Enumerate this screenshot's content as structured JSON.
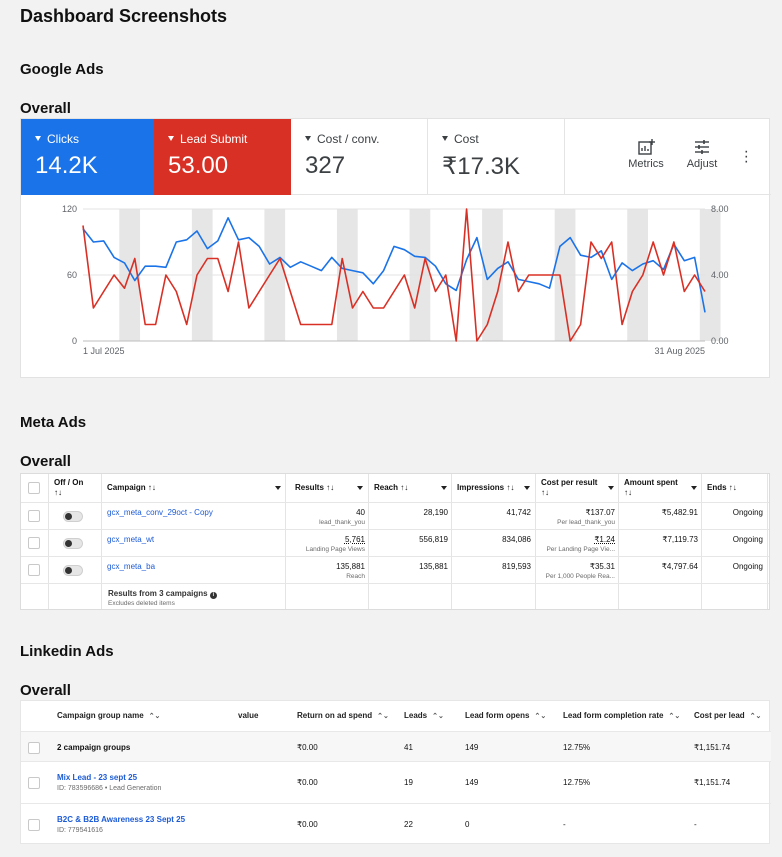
{
  "page": {
    "title": "Dashboard Screenshots"
  },
  "google": {
    "section": "Google Ads",
    "overall": "Overall",
    "tiles": [
      {
        "label": "Clicks",
        "value": "14.2K"
      },
      {
        "label": "Lead Submit",
        "value": "53.00"
      },
      {
        "label": "Cost / conv.",
        "value": "327"
      },
      {
        "label": "Cost",
        "value": "₹17.3K"
      }
    ],
    "tools": {
      "metrics": "Metrics",
      "adjust": "Adjust"
    },
    "colors": {
      "clicks": "#1a73e8",
      "leads": "#d93025"
    },
    "chart_data": {
      "type": "line",
      "x_start_label": "1 Jul 2025",
      "x_end_label": "31 Aug 2025",
      "left_axis": {
        "ticks": [
          "0",
          "60",
          "120"
        ],
        "range": [
          0,
          120
        ]
      },
      "right_axis": {
        "ticks": [
          "0.00",
          "4.00",
          "8.00"
        ],
        "range": [
          0,
          8
        ]
      },
      "series": [
        {
          "name": "Clicks",
          "axis": "left",
          "color": "#1a73e8",
          "values": [
            102,
            90,
            91,
            76,
            71,
            55,
            68,
            68,
            67,
            90,
            92,
            100,
            84,
            91,
            112,
            92,
            94,
            86,
            70,
            76,
            67,
            72,
            68,
            64,
            76,
            66,
            64,
            62,
            52,
            64,
            86,
            83,
            77,
            76,
            68,
            52,
            46,
            74,
            94,
            56,
            66,
            72,
            56,
            54,
            52,
            48,
            86,
            94,
            78,
            76,
            82,
            56,
            71,
            64,
            70,
            73,
            65,
            88,
            73,
            76,
            26
          ]
        },
        {
          "name": "Lead Submit",
          "axis": "right",
          "color": "#d93025",
          "values": [
            7.0,
            2.0,
            3.0,
            4.0,
            3.2,
            5.0,
            1.0,
            1.0,
            4.0,
            3.0,
            1.0,
            4.0,
            5.0,
            5.0,
            3.0,
            6.0,
            2.0,
            3.0,
            4.0,
            5.0,
            3.0,
            1.0,
            1.0,
            1.0,
            1.0,
            5.0,
            2.0,
            3.0,
            2.0,
            2.0,
            3.0,
            4.0,
            2.0,
            5.0,
            3.0,
            4.0,
            0.0,
            8.0,
            0.0,
            1.0,
            3.0,
            6.0,
            3.0,
            4.0,
            4.0,
            4.0,
            4.0,
            0.0,
            1.0,
            6.0,
            5.0,
            6.0,
            1.0,
            3.0,
            4.0,
            6.0,
            4.0,
            6.0,
            3.0,
            4.0,
            3.0
          ]
        }
      ]
    }
  },
  "meta": {
    "section": "Meta Ads",
    "overall": "Overall",
    "headers": [
      "Off / On",
      "Campaign",
      "Results",
      "Reach",
      "Impressions",
      "Cost per result",
      "Amount spent",
      "Ends"
    ],
    "sort_glyph": "↑↓",
    "rows": [
      {
        "campaign": "gcx_meta_conv_29oct - Copy",
        "results": "40",
        "results_sub": "lead_thank_you",
        "reach": "28,190",
        "impressions": "41,742",
        "cpr": "₹137.07",
        "cpr_sub": "Per lead_thank_you",
        "spent": "₹5,482.91",
        "ends": "Ongoing"
      },
      {
        "campaign": "gcx_meta_wt",
        "results": "5,761",
        "results_sub": "Landing Page Views",
        "reach": "556,819",
        "impressions": "834,086",
        "cpr": "₹1.24",
        "cpr_sub": "Per Landing Page Vie...",
        "spent": "₹7,119.73",
        "ends": "Ongoing"
      },
      {
        "campaign": "gcx_meta_ba",
        "results": "135,881",
        "results_sub": "Reach",
        "reach": "135,881",
        "impressions": "819,593",
        "cpr": "₹35.31",
        "cpr_sub": "Per 1,000 People Rea...",
        "spent": "₹4,797.64",
        "ends": "Ongoing"
      }
    ],
    "footer": {
      "title": "Results from 3 campaigns",
      "sub": "Excludes deleted items"
    }
  },
  "linkedin": {
    "section": "Linkedin Ads",
    "overall": "Overall",
    "headers": [
      "Campaign group name",
      "value",
      "Return on ad spend",
      "Leads",
      "Lead form opens",
      "Lead form completion rate",
      "Cost per lead"
    ],
    "sort_glyph": "⌃⌄",
    "total": {
      "name": "2 campaign groups",
      "roas": "₹0.00",
      "leads": "41",
      "opens": "149",
      "rate": "12.75%",
      "cpl": "₹1,151.74"
    },
    "rows": [
      {
        "name": "Mix Lead - 23 sept 25",
        "meta": "ID: 783596686 • Lead Generation",
        "roas": "₹0.00",
        "leads": "19",
        "opens": "149",
        "rate": "12.75%",
        "cpl": "₹1,151.74"
      },
      {
        "name": "B2C & B2B Awareness 23 Sept 25",
        "meta": "ID: 779541616",
        "roas": "₹0.00",
        "leads": "22",
        "opens": "0",
        "rate": "-",
        "cpl": "-"
      }
    ]
  }
}
